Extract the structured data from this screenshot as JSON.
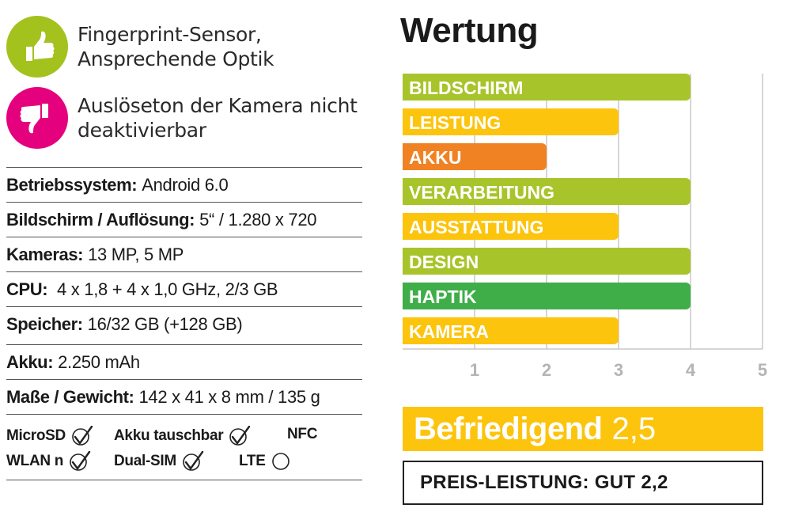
{
  "pros": {
    "text_line1": "Fingerprint-Sensor,",
    "text_line2": "Ansprechende Optik",
    "icon": "thumbs-up-icon",
    "color": "#a3c21e"
  },
  "cons": {
    "text_line1": "Auslöseton der Kamera nicht",
    "text_line2": "deaktivierbar",
    "icon": "thumbs-down-icon",
    "color": "#e5007e"
  },
  "specs": [
    {
      "label": "Betriebssystem:",
      "value": "Android 6.0"
    },
    {
      "label": "Bildschirm / Auflösung:",
      "value": "5“ / 1.280 x 720"
    },
    {
      "label": "Kameras:",
      "value": "13 MP, 5 MP"
    },
    {
      "label": "CPU:",
      "value": " 4 x 1,8 + 4 x 1,0 GHz, 2/3 GB"
    },
    {
      "label": "Speicher:",
      "value": "16/32 GB (+128 GB)"
    },
    {
      "label": "Akku:",
      "value": "2.250 mAh"
    },
    {
      "label": "Maße / Gewicht:",
      "value": "142 x 41 x 8 mm / 135 g"
    }
  ],
  "features": [
    {
      "label": "MicroSD",
      "available": true
    },
    {
      "label": "Akku tauschbar",
      "available": true
    },
    {
      "label": "NFC",
      "available": false
    },
    {
      "label": "WLAN n",
      "available": true
    },
    {
      "label": "Dual-SIM",
      "available": true
    },
    {
      "label": "LTE",
      "available": false
    }
  ],
  "rating_title": "Wertung",
  "chart_data": {
    "type": "bar",
    "orientation": "horizontal",
    "categories": [
      "BILDSCHIRM",
      "LEISTUNG",
      "AKKU",
      "VERARBEITUNG",
      "AUSSTATTUNG",
      "DESIGN",
      "HAPTIK",
      "KAMERA"
    ],
    "values": [
      4,
      3,
      2,
      4,
      3,
      4,
      4,
      3
    ],
    "colors": [
      "#a8c42b",
      "#fcc40d",
      "#f08223",
      "#a8c42b",
      "#fcc40d",
      "#a8c42b",
      "#3fae49",
      "#fcc40d"
    ],
    "xlim": [
      0,
      5
    ],
    "xticks": [
      "1",
      "2",
      "3",
      "4",
      "5"
    ],
    "grid": true
  },
  "result": {
    "word": "Befriedigend",
    "score": "2,5",
    "color": "#fcc40d"
  },
  "price_performance": "PREIS-LEISTUNG: GUT 2,2"
}
